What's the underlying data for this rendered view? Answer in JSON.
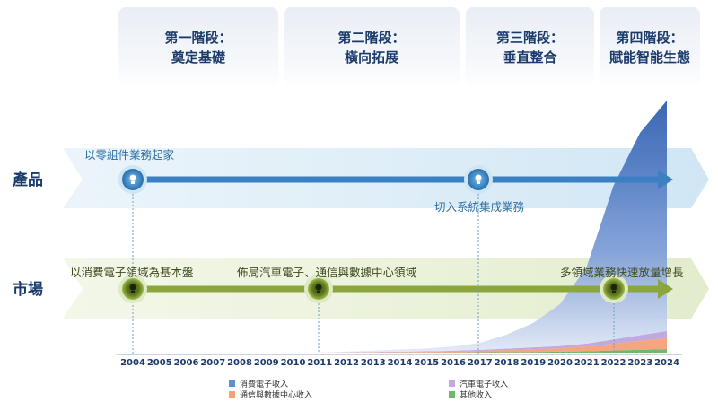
{
  "stages": [
    {
      "line1": "第一階段：",
      "line2": "奠定基礎"
    },
    {
      "line1": "第二階段：",
      "line2": "橫向拓展"
    },
    {
      "line1": "第三階段：",
      "line2": "垂直整合"
    },
    {
      "line1": "第四階段：",
      "line2": "賦能智能生態"
    }
  ],
  "rows": {
    "product": "產品",
    "market": "市場"
  },
  "annotations": {
    "product_2004": "以零組件業務起家",
    "product_2017": "切入系統集成業務",
    "market_2004": "以消費電子領域為基本盤",
    "market_2011": "佈局汽車電子、通信與數據中心領域",
    "market_2022": "多領域業務快速放量增長"
  },
  "chart_data": {
    "type": "area",
    "stacked": true,
    "x": [
      "2004",
      "2005",
      "2006",
      "2007",
      "2008",
      "2009",
      "2010",
      "2011",
      "2012",
      "2013",
      "2014",
      "2015",
      "2016",
      "2017",
      "2018",
      "2019",
      "2020",
      "2021",
      "2022",
      "2023",
      "2024"
    ],
    "series": [
      {
        "name": "其他收入",
        "color": "#5aa85a",
        "values": [
          0,
          0,
          0,
          0,
          0,
          0,
          0,
          0,
          0,
          0,
          0.1,
          0.2,
          0.3,
          0.5,
          0.8,
          1,
          1.5,
          2,
          3,
          4,
          5
        ]
      },
      {
        "name": "通信與數據中心收入",
        "color": "#f3956a",
        "values": [
          0,
          0,
          0,
          0,
          0,
          0,
          0,
          0,
          0.3,
          0.5,
          0.8,
          1,
          1.5,
          2,
          3,
          4,
          5,
          7,
          10,
          13,
          16
        ]
      },
      {
        "name": "汽車電子收入",
        "color": "#b49ad8",
        "values": [
          0,
          0,
          0,
          0,
          0,
          0,
          0,
          0,
          0.2,
          0.4,
          0.6,
          0.8,
          1,
          1.5,
          2,
          2.5,
          3,
          4,
          6,
          8,
          10
        ]
      },
      {
        "name": "消費電子收入",
        "color": "#3c6fbf",
        "values": [
          0,
          0,
          0,
          0,
          0,
          0,
          0,
          0.3,
          1,
          2,
          3,
          4,
          6,
          10,
          20,
          35,
          60,
          110,
          220,
          290,
          330
        ]
      }
    ],
    "ylim": [
      0,
      370
    ],
    "legend_position": "bottom"
  },
  "legend": [
    {
      "label": "消費電子收入",
      "color": "#5b8fd6"
    },
    {
      "label": "汽車電子收入",
      "color": "#c4a8e0"
    },
    {
      "label": "通信與數據中心收入",
      "color": "#f7a074"
    },
    {
      "label": "其他收入",
      "color": "#6cbb6c"
    }
  ],
  "colors": {
    "blue_arrow": "#3a80c2",
    "green_arrow": "#8aa63c",
    "title": "#1a3a6c"
  }
}
